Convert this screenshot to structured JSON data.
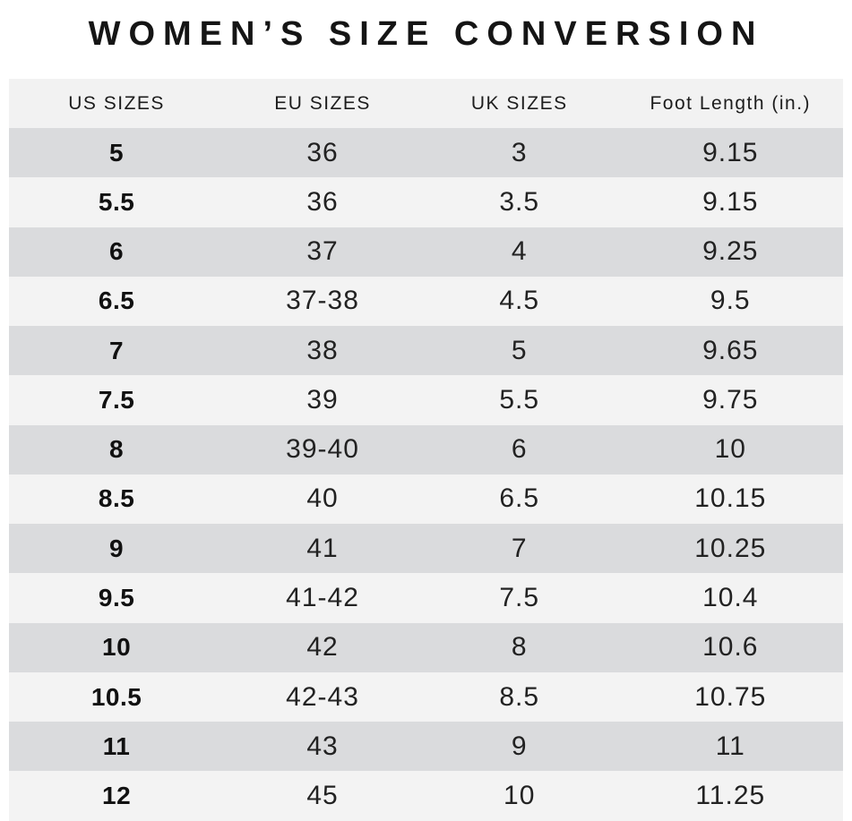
{
  "title": "WOMEN’S SIZE CONVERSION",
  "colors": {
    "background": "#ffffff",
    "header_bg": "#f2f2f2",
    "row_dark": "#dadbdd",
    "row_light": "#f3f3f3",
    "text": "#222222",
    "title_text": "#151515"
  },
  "table": {
    "columns": [
      "US SIZES",
      "EU SIZES",
      "UK SIZES",
      "Foot Length (in.)"
    ],
    "rows": [
      [
        "5",
        "36",
        "3",
        "9.15"
      ],
      [
        "5.5",
        "36",
        "3.5",
        "9.15"
      ],
      [
        "6",
        "37",
        "4",
        "9.25"
      ],
      [
        "6.5",
        "37-38",
        "4.5",
        "9.5"
      ],
      [
        "7",
        "38",
        "5",
        "9.65"
      ],
      [
        "7.5",
        "39",
        "5.5",
        "9.75"
      ],
      [
        "8",
        "39-40",
        "6",
        "10"
      ],
      [
        "8.5",
        "40",
        "6.5",
        "10.15"
      ],
      [
        "9",
        "41",
        "7",
        "10.25"
      ],
      [
        "9.5",
        "41-42",
        "7.5",
        "10.4"
      ],
      [
        "10",
        "42",
        "8",
        "10.6"
      ],
      [
        "10.5",
        "42-43",
        "8.5",
        "10.75"
      ],
      [
        "11",
        "43",
        "9",
        "11"
      ],
      [
        "12",
        "45",
        "10",
        "11.25"
      ]
    ]
  },
  "chart_data": {
    "type": "table",
    "title": "WOMEN’S SIZE CONVERSION",
    "columns": [
      "US SIZES",
      "EU SIZES",
      "UK SIZES",
      "Foot Length (in.)"
    ],
    "rows": [
      [
        "5",
        "36",
        "3",
        "9.15"
      ],
      [
        "5.5",
        "36",
        "3.5",
        "9.15"
      ],
      [
        "6",
        "37",
        "4",
        "9.25"
      ],
      [
        "6.5",
        "37-38",
        "4.5",
        "9.5"
      ],
      [
        "7",
        "38",
        "5",
        "9.65"
      ],
      [
        "7.5",
        "39",
        "5.5",
        "9.75"
      ],
      [
        "8",
        "39-40",
        "6",
        "10"
      ],
      [
        "8.5",
        "40",
        "6.5",
        "10.15"
      ],
      [
        "9",
        "41",
        "7",
        "10.25"
      ],
      [
        "9.5",
        "41-42",
        "7.5",
        "10.4"
      ],
      [
        "10",
        "42",
        "8",
        "10.6"
      ],
      [
        "10.5",
        "42-43",
        "8.5",
        "10.75"
      ],
      [
        "11",
        "43",
        "9",
        "11"
      ],
      [
        "12",
        "45",
        "10",
        "11.25"
      ]
    ],
    "layout_hints": {
      "row_striping": "alternating dark/light gray starting dark",
      "first_column_bold": true,
      "alignment": "center"
    }
  }
}
